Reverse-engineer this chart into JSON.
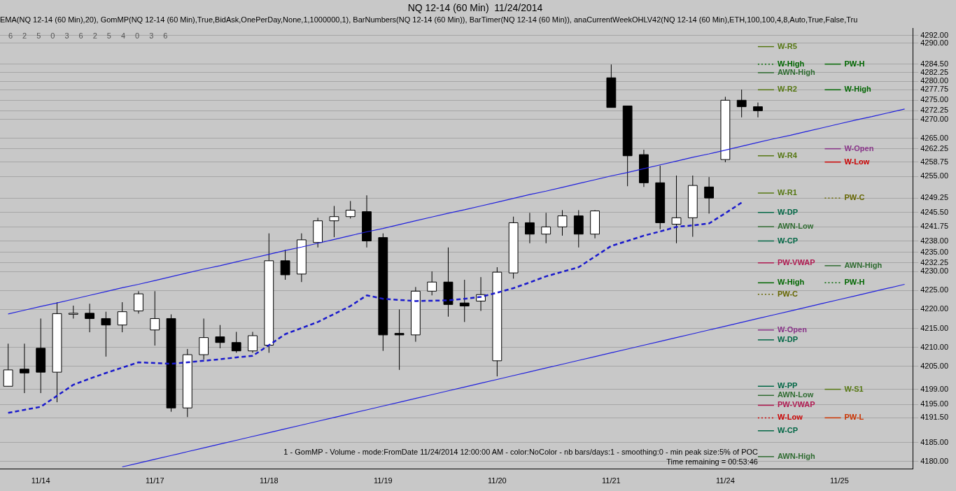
{
  "chart_data": {
    "type": "candlestick",
    "title": "NQ 12-14 (60 Min)  11/24/2014",
    "subtitle": "EMA(NQ 12-14 (60 Min),20), GomMP(NQ 12-14 (60 Min),True,BidAsk,OnePerDay,None,1,1000000,1), BarNumbers(NQ 12-14 (60 Min)), BarTimer(NQ 12-14 (60 Min)), anaCurrentWeekOHLV42(NQ 12-14 (60 Min),ETH,100,100,4,8,Auto,True,False,Tru",
    "categories": [
      null,
      null,
      "11/14",
      null,
      null,
      null,
      null,
      null,
      null,
      "11/17",
      null,
      null,
      null,
      null,
      null,
      null,
      "11/18",
      null,
      null,
      null,
      null,
      null,
      null,
      "11/19",
      null,
      null,
      null,
      null,
      null,
      null,
      "11/20",
      null,
      null,
      null,
      null,
      null,
      null,
      "11/21",
      null,
      null,
      null,
      null,
      null,
      null,
      "11/24",
      null,
      null,
      null,
      null,
      null,
      null,
      "11/25",
      null,
      null,
      null,
      null
    ],
    "ohlc": [
      [
        4199.8,
        4211,
        4199.8,
        4204.1
      ],
      [
        4204.3,
        4211,
        4198,
        4203.3
      ],
      [
        4209.8,
        4217.6,
        4198,
        4203.5
      ],
      [
        4203.5,
        4221.9,
        4195.6,
        4218.9
      ],
      [
        4219,
        4221,
        4217.6,
        4219
      ],
      [
        4219,
        4221.5,
        4214,
        4217.6
      ],
      [
        4217.6,
        4219.4,
        4207.6,
        4215.9
      ],
      [
        4215.9,
        4221.9,
        4214,
        4219.4
      ],
      [
        4219.6,
        4224.8,
        4218.9,
        4224.1
      ],
      [
        4214.6,
        4224.8,
        4210.5,
        4217.6
      ],
      [
        4217.6,
        4218.7,
        4193.1,
        4194.1
      ],
      [
        4194.1,
        4209.6,
        4191.7,
        4208.1
      ],
      [
        4208.1,
        4217.6,
        4206.8,
        4212.6
      ],
      [
        4212.8,
        4215.9,
        4209.8,
        4211.3
      ],
      [
        4211.3,
        4214.1,
        4208.6,
        4209.1
      ],
      [
        4209.1,
        4214.1,
        4208.6,
        4213.1
      ],
      [
        4210.6,
        4240,
        4208.6,
        4232.8
      ],
      [
        4232.8,
        4235.7,
        4227.8,
        4229.1
      ],
      [
        4229.3,
        4240,
        4227.2,
        4238.3
      ],
      [
        4237.6,
        4244.1,
        4236.3,
        4243.3
      ],
      [
        4243.3,
        4247.2,
        4239,
        4244.4
      ],
      [
        4244.4,
        4248.5,
        4243.9,
        4246.1
      ],
      [
        4245.7,
        4250,
        4236.3,
        4238
      ],
      [
        4238.9,
        4240,
        4209.1,
        4213.3
      ],
      [
        4213.7,
        4220,
        4204.1,
        4213.3
      ],
      [
        4213.3,
        4225.9,
        4211.5,
        4224.8
      ],
      [
        4224.8,
        4230,
        4223.7,
        4227.2
      ],
      [
        4227.2,
        4236.3,
        4218.1,
        4221.3
      ],
      [
        4221.7,
        4227.8,
        4216.7,
        4220.9
      ],
      [
        4222.2,
        4228.5,
        4219.6,
        4223.9
      ],
      [
        4206.5,
        4231.1,
        4202.4,
        4229.8
      ],
      [
        4229.6,
        4244.4,
        4228.1,
        4242.8
      ],
      [
        4242.8,
        4245.4,
        4237.4,
        4239.8
      ],
      [
        4239.8,
        4245.4,
        4237.4,
        4241.7
      ],
      [
        4241.7,
        4246.1,
        4239.4,
        4244.6
      ],
      [
        4244.6,
        4246.1,
        4236.3,
        4239.8
      ],
      [
        4239.8,
        4246.1,
        4238.7,
        4245.9
      ],
      [
        4280.9,
        4284.4,
        4273.1,
        4273.1
      ],
      [
        4273.5,
        4273.5,
        4252.4,
        4260.4
      ],
      [
        4260.7,
        4262,
        4252.2,
        4253.3
      ],
      [
        4253.3,
        4257.8,
        4241.1,
        4242.8
      ],
      [
        4242.4,
        4255.2,
        4237.4,
        4244.1
      ],
      [
        4244.1,
        4255.2,
        4239.1,
        4252.6
      ],
      [
        4252.2,
        4254.8,
        4245.2,
        4249.3
      ],
      [
        4259.4,
        4275.9,
        4258.7,
        4275
      ],
      [
        4275,
        4277.8,
        4270.5,
        4273.3
      ],
      [
        4273.3,
        4274.4,
        4270.5,
        4272.25
      ],
      null,
      null,
      null,
      null,
      null,
      null,
      null,
      null,
      null
    ],
    "series": [
      {
        "type": "line",
        "color": "#1a1acc",
        "line_style": "dashed",
        "values": [
          4192.8,
          4193.6,
          4194.4,
          4197.3,
          4200.2,
          4201.8,
          4203.3,
          4204.7,
          4206.1,
          4205.9,
          4205.7,
          4206.1,
          4206.5,
          4206.9,
          4207.4,
          4207.8,
          4210.6,
          4213.5,
          4215.1,
          4216.7,
          4218.8,
          4220.9,
          4223.7,
          4222.8,
          4222.5,
          4222.2,
          4222.3,
          4222.4,
          4222.8,
          4223.3,
          4224.4,
          4225.6,
          4227.1,
          4228.7,
          4229.9,
          4231.1,
          4233.9,
          4236.7,
          4238.0,
          4239.4,
          4240.5,
          4241.7,
          4242.1,
          4242.6,
          4245.3,
          4248.1,
          null,
          null,
          null,
          null,
          null,
          null,
          null,
          null,
          null,
          null
        ]
      },
      {
        "type": "line",
        "color": "#2020dd",
        "line_style": "solid",
        "values": [
          4218.8,
          4219.8,
          4220.8,
          4221.7,
          4222.7,
          4223.7,
          4224.7,
          4225.7,
          4226.6,
          4227.6,
          4228.6,
          4229.6,
          4230.6,
          4231.5,
          4232.5,
          4233.5,
          4234.5,
          4235.5,
          4236.4,
          4237.4,
          4238.4,
          4239.4,
          4240.4,
          4241.3,
          4242.3,
          4243.3,
          4244.3,
          4245.3,
          4246.2,
          4247.2,
          4248.2,
          4249.2,
          4250.2,
          4251.1,
          4252.1,
          4253.1,
          4254.1,
          4255.1,
          4256.0,
          4257.0,
          4258.0,
          4259.0,
          4260.0,
          4260.9,
          4261.9,
          4262.9,
          4263.9,
          4264.9,
          4265.8,
          4266.8,
          4267.8,
          4268.8,
          4269.8,
          4270.7,
          4271.7,
          4272.7
        ]
      },
      {
        "type": "line",
        "color": "#2020dd",
        "line_style": "solid",
        "values": [
          null,
          null,
          null,
          null,
          null,
          null,
          null,
          4178.6,
          4179.6,
          4180.6,
          4181.6,
          4182.6,
          4183.6,
          4184.6,
          4185.6,
          4186.6,
          4187.6,
          4188.6,
          4189.6,
          4190.6,
          4191.6,
          4192.6,
          4193.6,
          4194.6,
          4195.6,
          4196.6,
          4197.6,
          4198.6,
          4199.6,
          4200.6,
          4201.6,
          4202.6,
          4203.6,
          4204.6,
          4205.6,
          4206.6,
          4207.6,
          4208.6,
          4209.6,
          4210.6,
          4211.6,
          4212.6,
          4213.6,
          4214.6,
          4215.6,
          4216.6,
          4217.6,
          4218.6,
          4219.6,
          4220.6,
          4221.6,
          4222.6,
          4223.6,
          4224.6,
          4225.6,
          4226.6
        ]
      }
    ],
    "ylim": [
      4178,
      4294
    ],
    "yticks": [
      {
        "value": 4180,
        "label": "4180.00"
      },
      {
        "value": 4185,
        "label": "4185.00"
      },
      {
        "value": 4191.5,
        "label": "4191.50"
      },
      {
        "value": 4195,
        "label": "4195.00"
      },
      {
        "value": 4199,
        "label": "4199.00"
      },
      {
        "value": 4205,
        "label": "4205.00"
      },
      {
        "value": 4210,
        "label": "4210.00"
      },
      {
        "value": 4215,
        "label": "4215.00"
      },
      {
        "value": 4220,
        "label": "4220.00"
      },
      {
        "value": 4225,
        "label": "4225.00"
      },
      {
        "value": 4230,
        "label": "4230.00"
      },
      {
        "value": 4232.25,
        "label": "4232.25"
      },
      {
        "value": 4235,
        "label": "4235.00"
      },
      {
        "value": 4238,
        "label": "4238.00"
      },
      {
        "value": 4241.75,
        "label": "4241.75"
      },
      {
        "value": 4245.5,
        "label": "4245.50"
      },
      {
        "value": 4249.25,
        "label": "4249.25"
      },
      {
        "value": 4255,
        "label": "4255.00"
      },
      {
        "value": 4258.75,
        "label": "4258.75"
      },
      {
        "value": 4262.25,
        "label": "4262.25"
      },
      {
        "value": 4265,
        "label": "4265.00"
      },
      {
        "value": 4270,
        "label": "4270.00"
      },
      {
        "value": 4272.25,
        "label": "4272.25"
      },
      {
        "value": 4275,
        "label": "4275.00"
      },
      {
        "value": 4277.75,
        "label": "4277.75"
      },
      {
        "value": 4280,
        "label": "4280.00"
      },
      {
        "value": 4282.25,
        "label": "4282.25"
      },
      {
        "value": 4284.5,
        "label": "4284.50"
      },
      {
        "value": 4290,
        "label": "4290.00"
      },
      {
        "value": 4292,
        "label": "4292.00"
      }
    ],
    "grid": "y",
    "legend": false,
    "marker": "none",
    "ref_lines": [
      {
        "axis": "y",
        "value": 4289.1,
        "label": "W-R5",
        "color": "#557711"
      },
      {
        "axis": "y",
        "value": 4260.4,
        "label": "W-R4",
        "color": "#557711"
      },
      {
        "axis": "y",
        "value": 4227,
        "label": "W-High",
        "color": "#006600"
      },
      {
        "axis": "y",
        "value": 4181.3,
        "label": "AWN-High",
        "color": "#2e6b30"
      },
      {
        "axis": "y",
        "value": 4284.5,
        "label": "W-High",
        "color": "#006600",
        "line_style": "dotted"
      },
      {
        "axis": "y",
        "value": 4284.5,
        "label": "PW-H",
        "color": "#006600"
      },
      {
        "axis": "y",
        "value": 4282.25,
        "label": "AWN-High",
        "color": "#2e6b30"
      },
      {
        "axis": "y",
        "value": 4277.75,
        "label": "W-R2",
        "color": "#557711"
      },
      {
        "axis": "y",
        "value": 4277.75,
        "label": "W-High",
        "color": "#006600"
      },
      {
        "axis": "y",
        "value": 4262.25,
        "label": "W-Open",
        "color": "#883388"
      },
      {
        "axis": "y",
        "value": 4258.75,
        "label": "W-Low",
        "color": "#cc0000"
      },
      {
        "axis": "y",
        "value": 4250.6,
        "label": "W-R1",
        "color": "#557711"
      },
      {
        "axis": "y",
        "value": 4249.25,
        "label": "PW-C",
        "color": "#666600",
        "line_style": "dotted"
      },
      {
        "axis": "y",
        "value": 4245.5,
        "label": "W-DP",
        "color": "#006644"
      },
      {
        "axis": "y",
        "value": 4241.75,
        "label": "AWN-Low",
        "color": "#2e6b30"
      },
      {
        "axis": "y",
        "value": 4238,
        "label": "W-CP",
        "color": "#006644"
      },
      {
        "axis": "y",
        "value": 4232.25,
        "label": "PW-VWAP",
        "color": "#b01850"
      },
      {
        "axis": "y",
        "value": 4231.5,
        "label": "AWN-High",
        "color": "#2e6b30"
      },
      {
        "axis": "y",
        "value": 4227,
        "label": "PW-H",
        "color": "#006600",
        "line_style": "dotted"
      },
      {
        "axis": "y",
        "value": 4224,
        "label": "PW-C",
        "color": "#666600",
        "line_style": "dotted"
      },
      {
        "axis": "y",
        "value": 4214.6,
        "label": "W-Open",
        "color": "#883388"
      },
      {
        "axis": "y",
        "value": 4212,
        "label": "W-DP",
        "color": "#006644"
      },
      {
        "axis": "y",
        "value": 4199.8,
        "label": "W-PP",
        "color": "#006644"
      },
      {
        "axis": "y",
        "value": 4199,
        "label": "W-S1",
        "color": "#557711"
      },
      {
        "axis": "y",
        "value": 4197.4,
        "label": "AWN-Low",
        "color": "#2e6b30"
      },
      {
        "axis": "y",
        "value": 4194.8,
        "label": "PW-VWAP",
        "color": "#b01850"
      },
      {
        "axis": "y",
        "value": 4191.5,
        "label": "W-Low",
        "color": "#cc0000",
        "line_style": "dotted"
      },
      {
        "axis": "y",
        "value": 4191.5,
        "label": "PW-L",
        "color": "#cc3300"
      },
      {
        "axis": "y",
        "value": 4188.1,
        "label": "W-CP",
        "color": "#006644"
      }
    ],
    "annotations": [
      "6",
      "2",
      "5",
      "0",
      "3",
      "6",
      "2",
      "5",
      "4",
      "0",
      "3",
      "6",
      "1 - GomMP - Volume - mode:FromDate 11/24/2014 12:00:00 AM - color:NoColor - nb bars/days:1 - smoothing:0 - min peak size:5% of POC",
      "Time remaining = 00:53:46"
    ]
  }
}
